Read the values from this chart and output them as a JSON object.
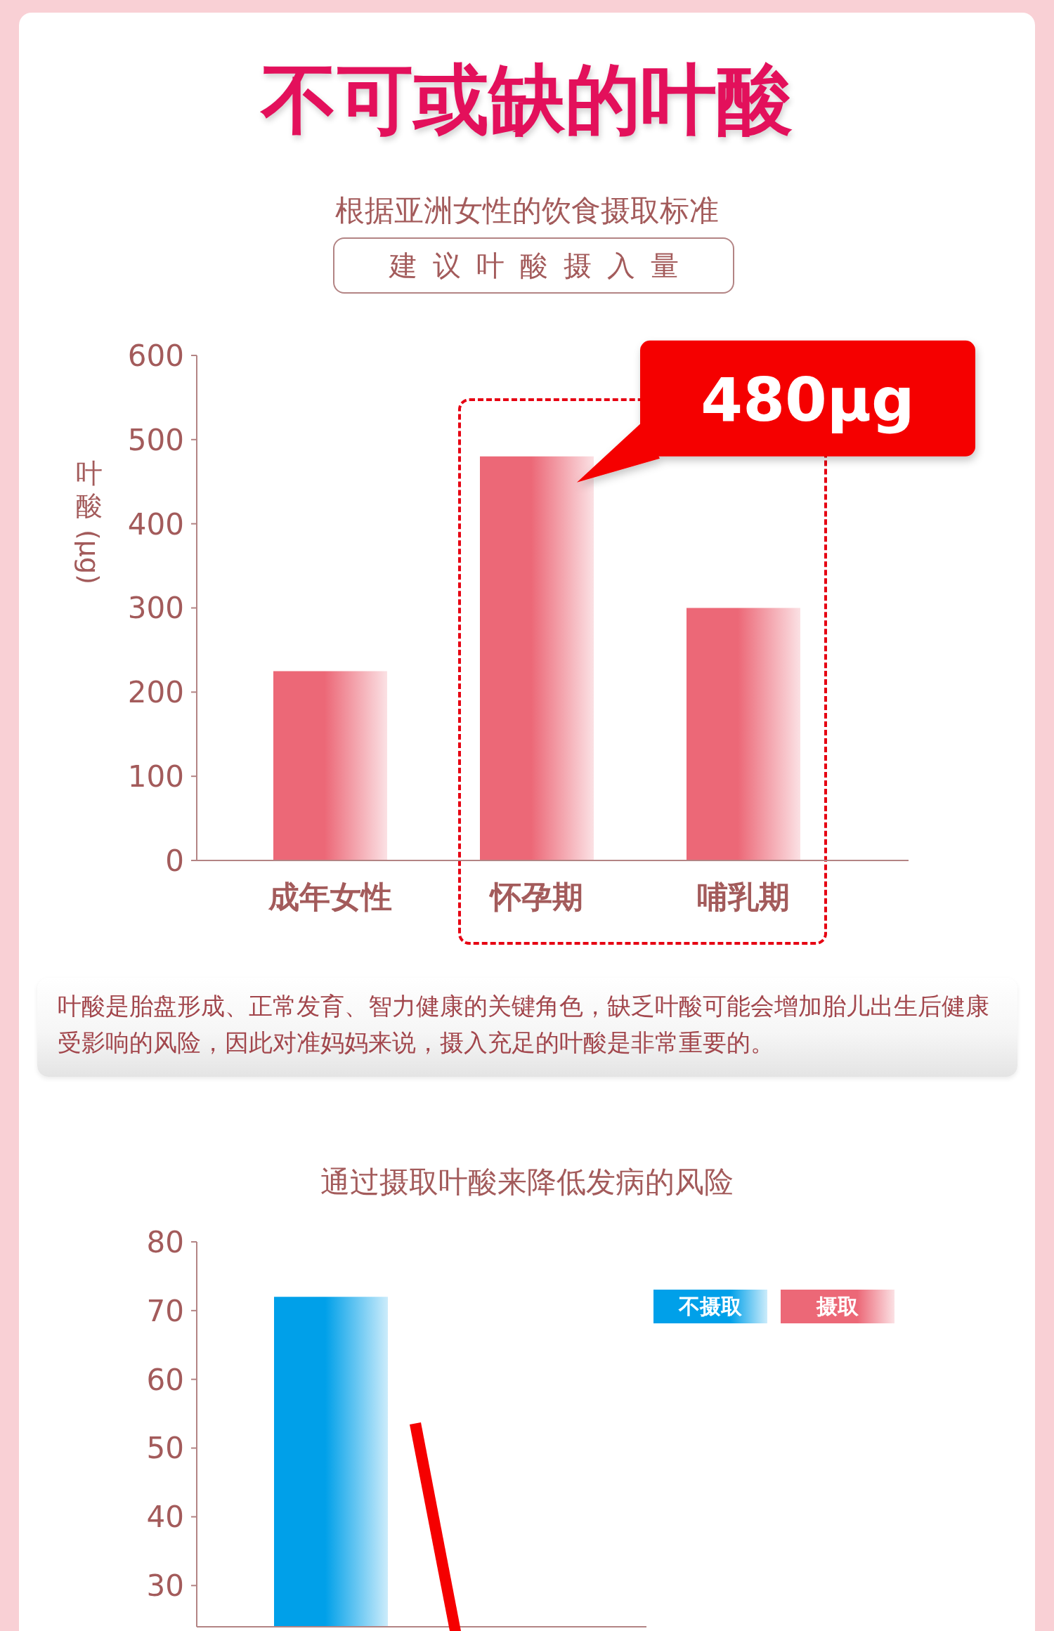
{
  "chart_data": [
    {
      "type": "bar",
      "title": "不可或缺的叶酸",
      "subtitle": "根据亚洲女性的饮食摄取标准",
      "ylabel": "叶酸(μg)",
      "categories": [
        "成年女性",
        "怀孕期",
        "哺乳期"
      ],
      "values": [
        225,
        480,
        300
      ],
      "color": "#ec6877",
      "ylim": [
        0,
        600
      ],
      "yticks": [
        0,
        100,
        200,
        300,
        400,
        500,
        600
      ],
      "annotations": [
        "建议叶酸摄入量",
        {
          "text": "480μg",
          "x": "怀孕期",
          "y": 480
        },
        "叶酸是胎盘形成、正常发育、智力健康的关键角色，缺乏叶酸可能会增加胎儿出生后健康受影响的风险，因此对准妈妈来说，摄入充足的叶酸是非常重要的。"
      ]
    },
    {
      "type": "bar",
      "title": "通过摄取叶酸来降低发病的风险",
      "categories": [
        null
      ],
      "series": [
        {
          "name": "不摄取",
          "color": "#00a0e9",
          "values": [
            72
          ]
        },
        {
          "name": "摄取",
          "color": "#ec6877",
          "values": [
            null
          ]
        }
      ],
      "ylim": [
        24,
        80
      ],
      "yticks": [
        30,
        40,
        50,
        60,
        70,
        80
      ],
      "legend": "top right",
      "tick_labels": "y"
    }
  ]
}
